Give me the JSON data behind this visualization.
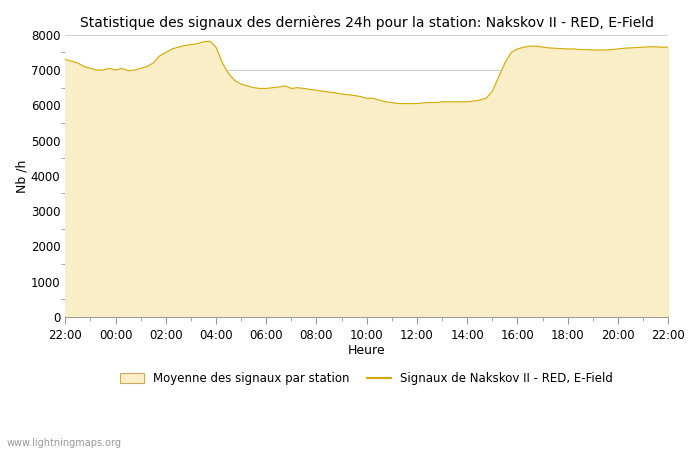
{
  "title": "Statistique des signaux des dernières 24h pour la station: Nakskov II - RED, E-Field",
  "xlabel": "Heure",
  "ylabel": "Nb /h",
  "ylim": [
    0,
    8000
  ],
  "background_color": "#ffffff",
  "fill_color": "#FAEEC8",
  "line_color": "#D4A900",
  "watermark": "www.lightningmaps.org",
  "legend_fill_label": "Moyenne des signaux par station",
  "legend_line_label": "Signaux de Nakskov II - RED, E-Field",
  "x_ticks": [
    "22:00",
    "00:00",
    "02:00",
    "04:00",
    "06:00",
    "08:00",
    "10:00",
    "12:00",
    "14:00",
    "16:00",
    "18:00",
    "20:00",
    "22:00"
  ],
  "x_values": [
    0,
    2,
    4,
    6,
    8,
    10,
    12,
    14,
    16,
    18,
    20,
    22,
    24
  ],
  "y_ticks": [
    0,
    1000,
    2000,
    3000,
    4000,
    5000,
    6000,
    7000,
    8000
  ],
  "signal_data_x": [
    0,
    0.25,
    0.5,
    0.75,
    1,
    1.25,
    1.5,
    1.75,
    2,
    2.25,
    2.5,
    2.75,
    3,
    3.25,
    3.5,
    3.75,
    4,
    4.25,
    4.5,
    4.75,
    5,
    5.25,
    5.5,
    5.75,
    6,
    6.25,
    6.5,
    6.75,
    7,
    7.25,
    7.5,
    7.75,
    8,
    8.25,
    8.5,
    8.75,
    9,
    9.25,
    9.5,
    9.75,
    10,
    10.25,
    10.5,
    10.75,
    11,
    11.25,
    11.5,
    11.75,
    12,
    12.25,
    12.5,
    12.75,
    13,
    13.25,
    13.5,
    13.75,
    14,
    14.25,
    14.5,
    14.75,
    15,
    15.25,
    15.5,
    15.75,
    16,
    16.25,
    16.5,
    16.75,
    17,
    17.25,
    17.5,
    17.75,
    18,
    18.25,
    18.5,
    18.75,
    19,
    19.25,
    19.5,
    19.75,
    20,
    20.25,
    20.5,
    20.75,
    21,
    21.25,
    21.5,
    21.75,
    22,
    22.25,
    22.5,
    22.75,
    23,
    23.25,
    23.5,
    23.75,
    24
  ],
  "signal_data_y": [
    7300,
    7250,
    7200,
    7100,
    7050,
    7000,
    7000,
    7050,
    7000,
    7050,
    6980,
    7000,
    7050,
    7100,
    7200,
    7400,
    7500,
    7600,
    7650,
    7700,
    7720,
    7750,
    7800,
    7820,
    7650,
    7200,
    6900,
    6700,
    6600,
    6550,
    6500,
    6480,
    6480,
    6500,
    6520,
    6550,
    6480,
    6500,
    6480,
    6450,
    6430,
    6400,
    6380,
    6350,
    6320,
    6300,
    6280,
    6250,
    6200,
    6200,
    6150,
    6100,
    6080,
    6050,
    6050,
    6050,
    6050,
    6070,
    6080,
    6080,
    6100,
    6100,
    6100,
    6100,
    6100,
    6120,
    6150,
    6200,
    6400,
    6800,
    7200,
    7500,
    7600,
    7650,
    7680,
    7680,
    7650,
    7630,
    7620,
    7610,
    7600,
    7600,
    7580,
    7580,
    7570,
    7570,
    7570,
    7580,
    7600,
    7620,
    7630,
    7640,
    7650,
    7660,
    7660,
    7650,
    7650
  ],
  "avg_data_x": [
    0,
    0.25,
    0.5,
    0.75,
    1,
    1.25,
    1.5,
    1.75,
    2,
    2.25,
    2.5,
    2.75,
    3,
    3.25,
    3.5,
    3.75,
    4,
    4.25,
    4.5,
    4.75,
    5,
    5.25,
    5.5,
    5.75,
    6,
    6.25,
    6.5,
    6.75,
    7,
    7.25,
    7.5,
    7.75,
    8,
    8.25,
    8.5,
    8.75,
    9,
    9.25,
    9.5,
    9.75,
    10,
    10.25,
    10.5,
    10.75,
    11,
    11.25,
    11.5,
    11.75,
    12,
    12.25,
    12.5,
    12.75,
    13,
    13.25,
    13.5,
    13.75,
    14,
    14.25,
    14.5,
    14.75,
    15,
    15.25,
    15.5,
    15.75,
    16,
    16.25,
    16.5,
    16.75,
    17,
    17.25,
    17.5,
    17.75,
    18,
    18.25,
    18.5,
    18.75,
    19,
    19.25,
    19.5,
    19.75,
    20,
    20.25,
    20.5,
    20.75,
    21,
    21.25,
    21.5,
    21.75,
    22,
    22.25,
    22.5,
    22.75,
    23,
    23.25,
    23.5,
    23.75,
    24
  ],
  "avg_data_y": [
    7300,
    7250,
    7200,
    7100,
    7050,
    7000,
    7000,
    7050,
    7000,
    7050,
    6980,
    7000,
    7050,
    7100,
    7200,
    7400,
    7500,
    7600,
    7650,
    7700,
    7720,
    7750,
    7800,
    7820,
    7650,
    7200,
    6900,
    6700,
    6600,
    6550,
    6500,
    6480,
    6480,
    6500,
    6520,
    6550,
    6480,
    6500,
    6480,
    6450,
    6430,
    6400,
    6380,
    6350,
    6320,
    6300,
    6280,
    6250,
    6200,
    6200,
    6150,
    6100,
    6080,
    6050,
    6050,
    6050,
    6050,
    6070,
    6080,
    6080,
    6100,
    6100,
    6100,
    6100,
    6100,
    6120,
    6150,
    6200,
    6400,
    6800,
    7200,
    7500,
    7600,
    7650,
    7680,
    7680,
    7650,
    7630,
    7620,
    7610,
    7600,
    7600,
    7580,
    7580,
    7570,
    7570,
    7570,
    7580,
    7600,
    7620,
    7630,
    7640,
    7650,
    7660,
    7660,
    7650,
    7650
  ],
  "title_fontsize": 10,
  "tick_fontsize": 8.5,
  "label_fontsize": 9,
  "legend_fontsize": 8.5,
  "watermark_fontsize": 7
}
